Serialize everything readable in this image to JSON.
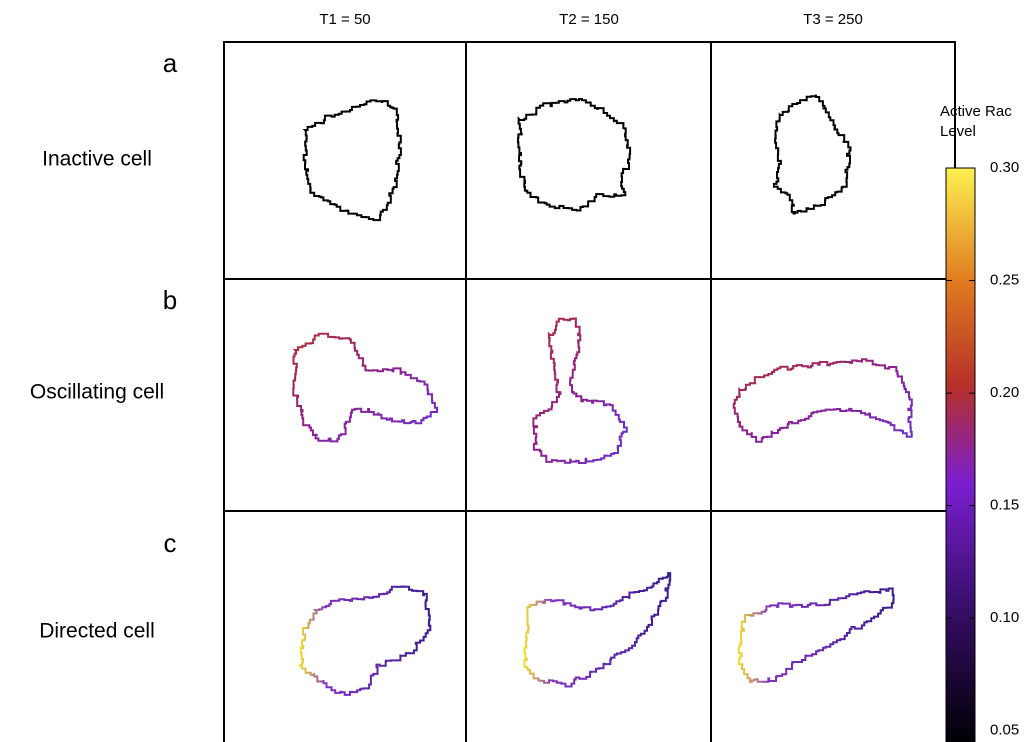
{
  "columns": [
    "T1 = 50",
    "T2 = 150",
    "T3 = 250"
  ],
  "rows": [
    {
      "letter": "a",
      "label": "Inactive cell"
    },
    {
      "letter": "b",
      "label": "Oscillating cell"
    },
    {
      "letter": "c",
      "label": "Directed cell"
    }
  ],
  "colorbar": {
    "title": "Active Rac Level",
    "lim": [
      0.045,
      0.3
    ],
    "ticks": [
      {
        "value": 0.05,
        "label": "0.05"
      },
      {
        "value": 0.1,
        "label": "0.10"
      },
      {
        "value": 0.15,
        "label": "0.15"
      },
      {
        "value": 0.2,
        "label": "0.20"
      },
      {
        "value": 0.25,
        "label": "0.25"
      },
      {
        "value": 0.3,
        "label": "0.30"
      }
    ]
  }
}
